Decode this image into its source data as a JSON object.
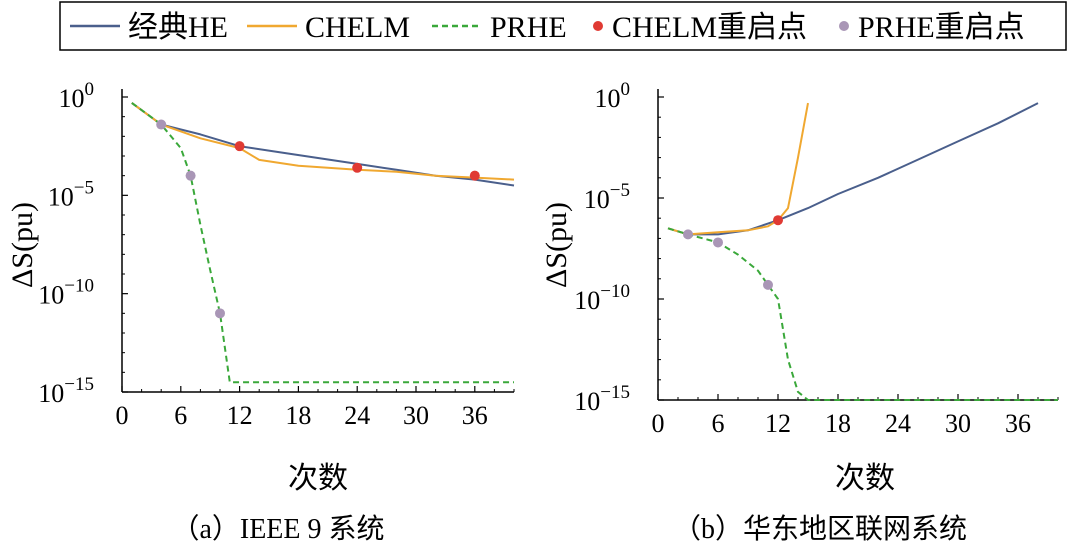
{
  "legend": {
    "items": [
      {
        "label": "经典HE",
        "kind": "line",
        "color": "#4a5f8c",
        "dash": ""
      },
      {
        "label": "CHELM",
        "kind": "line",
        "color": "#f0a830",
        "dash": ""
      },
      {
        "label": "PRHE",
        "kind": "line",
        "color": "#3aa83a",
        "dash": "6,4"
      },
      {
        "label": "CHELM重启点",
        "kind": "dot",
        "color": "#e03a33"
      },
      {
        "label": "PRHE重启点",
        "kind": "dot",
        "color": "#a996b6"
      }
    ]
  },
  "chart_data": [
    {
      "type": "line",
      "caption": "（a）IEEE 9 系统",
      "xlabel": "次数",
      "ylabel": "ΔS(pu)",
      "xlim": [
        0,
        40
      ],
      "ylim_log10": [
        -15,
        0
      ],
      "xticks": [
        "0",
        "6",
        "12",
        "18",
        "24",
        "30",
        "36"
      ],
      "yticks": [
        {
          "base": "10",
          "exp": "0"
        },
        {
          "base": "10",
          "exp": "−5"
        },
        {
          "base": "10",
          "exp": "−10"
        },
        {
          "base": "10",
          "exp": "−15"
        }
      ],
      "series": [
        {
          "name": "经典HE",
          "log10_points": [
            [
              1,
              -0.3
            ],
            [
              4,
              -1.4
            ],
            [
              8,
              -1.9
            ],
            [
              12,
              -2.5
            ],
            [
              16,
              -2.8
            ],
            [
              20,
              -3.1
            ],
            [
              24,
              -3.4
            ],
            [
              28,
              -3.7
            ],
            [
              32,
              -4.0
            ],
            [
              36,
              -4.2
            ],
            [
              40,
              -4.5
            ]
          ]
        },
        {
          "name": "CHELM",
          "log10_points": [
            [
              1,
              -0.3
            ],
            [
              4,
              -1.4
            ],
            [
              8,
              -2.1
            ],
            [
              12,
              -2.6
            ],
            [
              14,
              -3.2
            ],
            [
              18,
              -3.5
            ],
            [
              24,
              -3.7
            ],
            [
              28,
              -3.8
            ],
            [
              32,
              -4.0
            ],
            [
              36,
              -4.1
            ],
            [
              40,
              -4.2
            ]
          ]
        },
        {
          "name": "PRHE",
          "log10_points": [
            [
              1,
              -0.3
            ],
            [
              4,
              -1.4
            ],
            [
              6,
              -2.6
            ],
            [
              7,
              -4.0
            ],
            [
              8,
              -6.5
            ],
            [
              9,
              -8.8
            ],
            [
              10,
              -11.0
            ],
            [
              11,
              -14.5
            ],
            [
              40,
              -14.5
            ]
          ]
        }
      ],
      "restart_points": [
        {
          "series": "CHELM重启点",
          "log10_points": [
            [
              12,
              -2.5
            ],
            [
              24,
              -3.6
            ],
            [
              36,
              -4.0
            ]
          ]
        },
        {
          "series": "PRHE重启点",
          "log10_points": [
            [
              4,
              -1.4
            ],
            [
              7,
              -4.0
            ],
            [
              10,
              -11.0
            ]
          ]
        }
      ]
    },
    {
      "type": "line",
      "caption": "（b）华东地区联网系统",
      "xlabel": "次数",
      "ylabel": "ΔS(pu)",
      "xlim": [
        0,
        40
      ],
      "ylim_log10": [
        -15,
        0
      ],
      "xticks": [
        "0",
        "6",
        "12",
        "18",
        "24",
        "30",
        "36"
      ],
      "yticks": [
        {
          "base": "10",
          "exp": "0"
        },
        {
          "base": "10",
          "exp": "−5"
        },
        {
          "base": "10",
          "exp": "−10"
        },
        {
          "base": "10",
          "exp": "−15"
        }
      ],
      "series": [
        {
          "name": "经典HE",
          "log10_points": [
            [
              1,
              -6.5
            ],
            [
              3,
              -6.8
            ],
            [
              6,
              -6.8
            ],
            [
              9,
              -6.6
            ],
            [
              12,
              -6.1
            ],
            [
              15,
              -5.5
            ],
            [
              18,
              -4.8
            ],
            [
              22,
              -4.0
            ],
            [
              26,
              -3.1
            ],
            [
              30,
              -2.2
            ],
            [
              34,
              -1.3
            ],
            [
              38,
              -0.3
            ]
          ]
        },
        {
          "name": "CHELM",
          "log10_points": [
            [
              1,
              -6.5
            ],
            [
              3,
              -6.8
            ],
            [
              6,
              -6.7
            ],
            [
              9,
              -6.6
            ],
            [
              11,
              -6.4
            ],
            [
              12,
              -6.1
            ],
            [
              13,
              -5.5
            ],
            [
              14,
              -3.0
            ],
            [
              15,
              -0.3
            ]
          ]
        },
        {
          "name": "PRHE",
          "log10_points": [
            [
              1,
              -6.5
            ],
            [
              3,
              -6.8
            ],
            [
              6,
              -7.2
            ],
            [
              8,
              -7.8
            ],
            [
              10,
              -8.6
            ],
            [
              11,
              -9.3
            ],
            [
              12,
              -10.0
            ],
            [
              13,
              -13.0
            ],
            [
              14,
              -14.6
            ],
            [
              15,
              -15.0
            ],
            [
              40,
              -15.0
            ]
          ]
        }
      ],
      "restart_points": [
        {
          "series": "CHELM重启点",
          "log10_points": [
            [
              12,
              -6.1
            ]
          ]
        },
        {
          "series": "PRHE重启点",
          "log10_points": [
            [
              3,
              -6.8
            ],
            [
              6,
              -7.2
            ],
            [
              11,
              -9.3
            ]
          ]
        }
      ]
    }
  ]
}
